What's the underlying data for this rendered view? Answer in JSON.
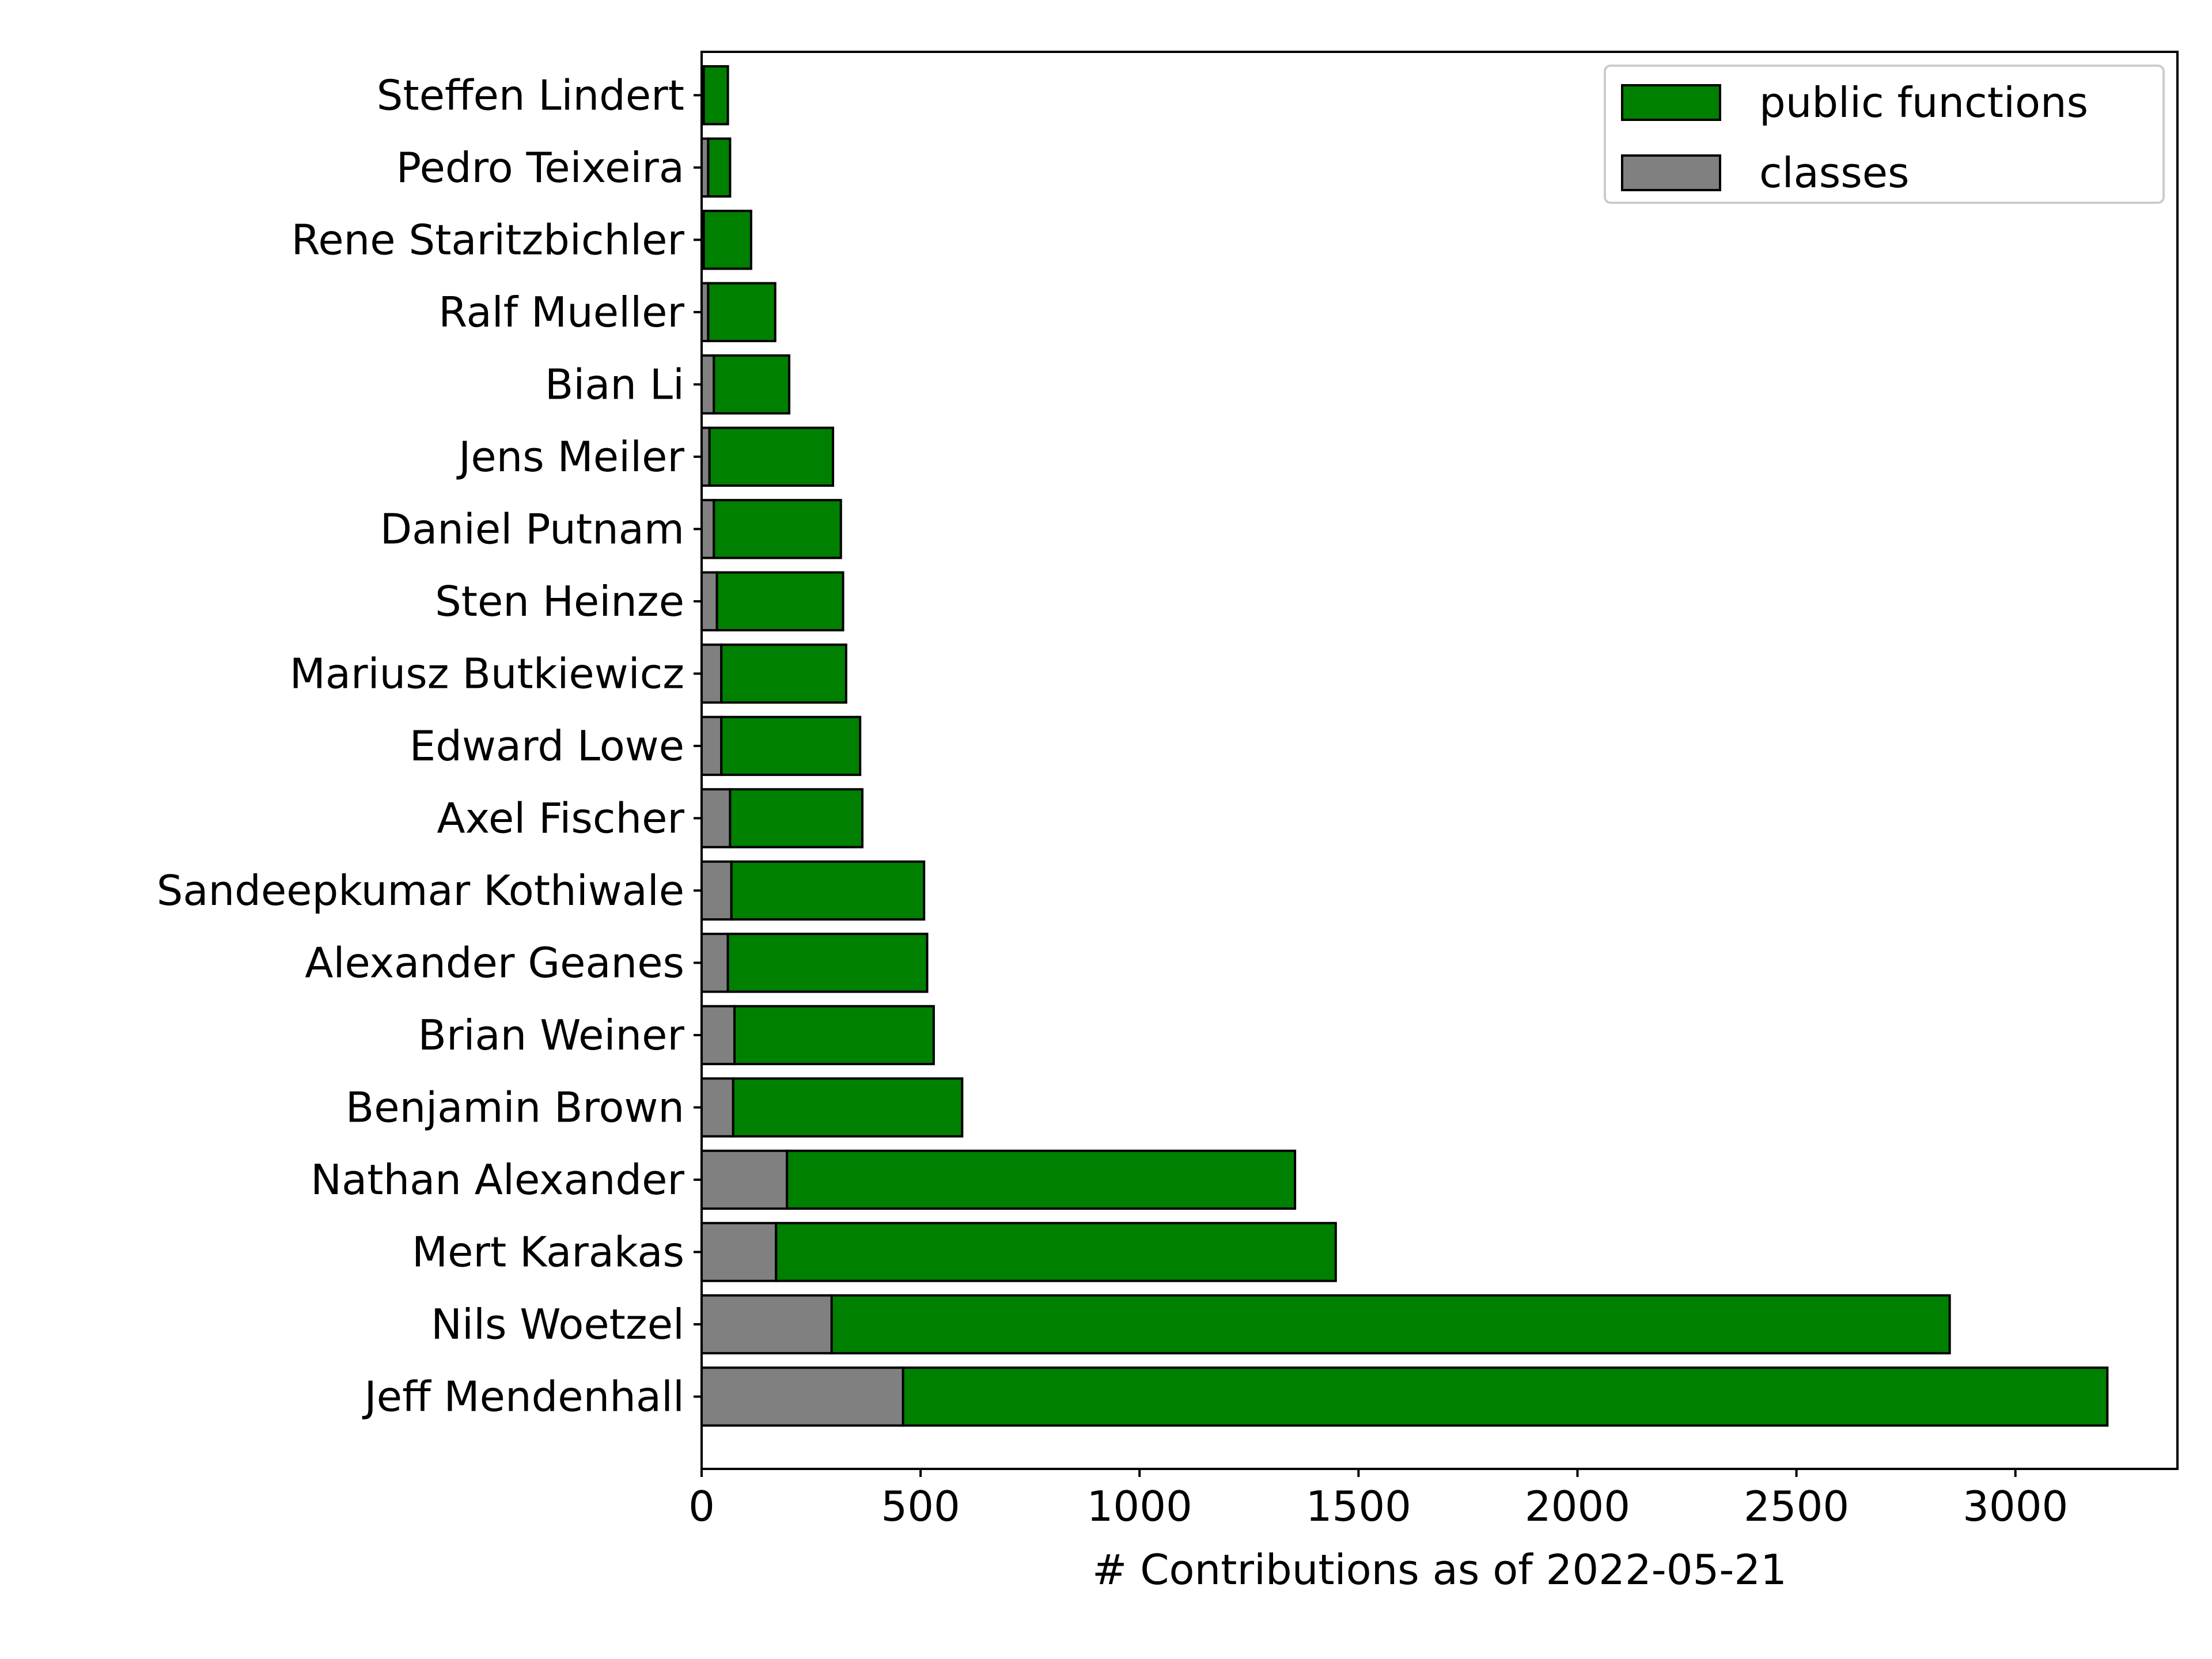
{
  "chart_data": {
    "type": "bar",
    "orientation": "horizontal",
    "stacked": true,
    "title": "",
    "xlabel": "# Contributions as of 2022-05-21",
    "ylabel": "",
    "xlim": [
      0,
      3370
    ],
    "xticks": [
      0,
      500,
      1000,
      1500,
      2000,
      2500,
      3000
    ],
    "legend_position": "top-right",
    "grid": false,
    "categories": [
      "Jeff Mendenhall",
      "Nils Woetzel",
      "Mert Karakas",
      "Nathan Alexander",
      "Benjamin Brown",
      "Brian Weiner",
      "Alexander Geanes",
      "Sandeepkumar Kothiwale",
      "Axel Fischer",
      "Edward Lowe",
      "Mariusz Butkiewicz",
      "Sten Heinze",
      "Daniel Putnam",
      "Jens Meiler",
      "Bian Li",
      "Ralf Mueller",
      "Rene Staritzbichler",
      "Pedro Teixeira",
      "Steffen Lindert"
    ],
    "series": [
      {
        "name": "classes",
        "color": "#808080",
        "values": [
          460,
          297,
          170,
          195,
          72,
          75,
          60,
          68,
          65,
          45,
          45,
          35,
          28,
          18,
          28,
          15,
          5,
          15,
          5
        ]
      },
      {
        "name": "public functions",
        "color": "#008000",
        "values": [
          2750,
          2553,
          1278,
          1160,
          523,
          455,
          455,
          440,
          302,
          317,
          285,
          288,
          290,
          282,
          172,
          153,
          108,
          50,
          55
        ]
      }
    ],
    "legend_order": [
      "public functions",
      "classes"
    ]
  }
}
